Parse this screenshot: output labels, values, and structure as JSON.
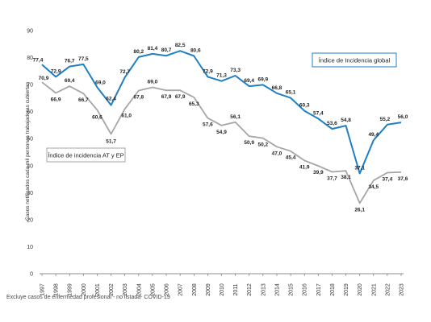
{
  "chart_data": {
    "type": "line",
    "ylabel": "Casos notificados cada mil personas trabajadoras cubiertas",
    "ylim": [
      0,
      90
    ],
    "yticks": [
      0,
      10,
      20,
      30,
      40,
      50,
      60,
      70,
      80,
      90
    ],
    "categories": [
      "1997",
      "1998",
      "1999",
      "2000",
      "2001",
      "2002",
      "2003",
      "2004",
      "2005",
      "2006",
      "2007",
      "2008",
      "2009",
      "2010",
      "2011",
      "2012",
      "2013",
      "2014",
      "2015",
      "2016",
      "2017",
      "2018",
      "2019",
      "2020",
      "2021",
      "2022",
      "2023"
    ],
    "grid": false,
    "series": [
      {
        "name": "Índice de Incidencia global",
        "color": "#1f7fc4",
        "values": [
          77.4,
          72.9,
          76.7,
          77.5,
          69.0,
          62.4,
          72.7,
          80.2,
          81.4,
          80.7,
          82.5,
          80.6,
          72.9,
          71.3,
          73.3,
          69.4,
          69.9,
          66.8,
          65.1,
          60.3,
          57.4,
          53.6,
          54.8,
          37.1,
          49.4,
          55.2,
          56.0
        ],
        "labels": [
          "77,4",
          "72,9",
          "76,7",
          "77,5",
          "69,0",
          "62,4",
          "72,7",
          "80,2",
          "81,4",
          "80,7",
          "82,5",
          "80,6",
          "72,9",
          "71,3",
          "73,3",
          "69,4",
          "69,9",
          "66,8",
          "65,1",
          "60,3",
          "57,4",
          "53,6",
          "54,8",
          "37,1",
          "49,4",
          "55,2",
          "56,0"
        ]
      },
      {
        "name": "Índice de incidencia AT y EP",
        "color": "#a6a6a6",
        "values": [
          70.9,
          66.9,
          69.4,
          66.7,
          60.6,
          51.7,
          61.0,
          67.8,
          69.0,
          67.9,
          67.9,
          65.3,
          57.6,
          54.9,
          56.1,
          50.9,
          50.2,
          47.0,
          45.4,
          41.9,
          39.9,
          37.7,
          38.1,
          26.1,
          34.5,
          37.4,
          37.6
        ],
        "labels": [
          "70,9",
          "66,9",
          "69,4",
          "66,7",
          "60,6",
          "51,7",
          "61,0",
          "67,8",
          "69,0",
          "67,9",
          "67,9",
          "65,3",
          "57,6",
          "54,9",
          "56,1",
          "50,9",
          "50,2",
          "47,0",
          "45,4",
          "41,9",
          "39,9",
          "37,7",
          "38,1",
          "26,1",
          "34,5",
          "37,4",
          "37,6"
        ]
      }
    ]
  },
  "footnote": "Excluye casos de enfermedad profesional - no listada- COVID-19"
}
